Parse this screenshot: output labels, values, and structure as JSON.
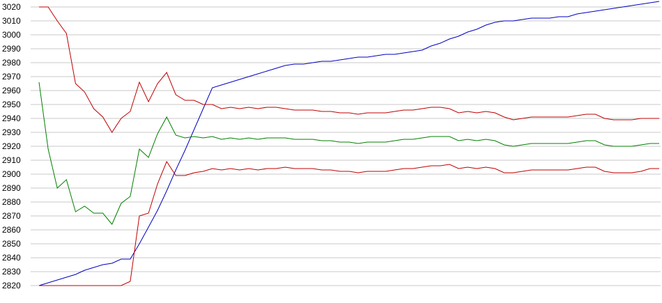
{
  "chart_data": {
    "type": "line",
    "title": "",
    "xlabel": "",
    "ylabel": "",
    "ylim": [
      2820,
      3020
    ],
    "yticks": [
      2820,
      2830,
      2840,
      2850,
      2860,
      2870,
      2880,
      2890,
      2900,
      2910,
      2920,
      2930,
      2940,
      2950,
      2960,
      2970,
      2980,
      2990,
      3000,
      3010,
      3020
    ],
    "grid": true,
    "legend": "none",
    "x": [
      0,
      1,
      2,
      3,
      4,
      5,
      6,
      7,
      8,
      9,
      10,
      11,
      12,
      13,
      14,
      15,
      16,
      17,
      18,
      19,
      20,
      21,
      22,
      23,
      24,
      25,
      26,
      27,
      28,
      29,
      30,
      31,
      32,
      33,
      34,
      35,
      36,
      37,
      38,
      39,
      40,
      41,
      42,
      43,
      44,
      45,
      46,
      47,
      48,
      49,
      50,
      51,
      52,
      53,
      54,
      55,
      56,
      57,
      58,
      59,
      60,
      61,
      62,
      63,
      64,
      65,
      66,
      67,
      68
    ],
    "series": [
      {
        "color": "#0000c0",
        "values": [
          2820,
          2822,
          2824,
          2826,
          2828,
          2831,
          2833,
          2835,
          2836,
          2839,
          2839,
          2850,
          2862,
          2874,
          2888,
          2903,
          2917,
          2932,
          2947,
          2962,
          2964,
          2966,
          2968,
          2970,
          2972,
          2974,
          2976,
          2978,
          2979,
          2979,
          2980,
          2981,
          2981,
          2982,
          2983,
          2984,
          2984,
          2985,
          2986,
          2986,
          2987,
          2988,
          2989,
          2992,
          2994,
          2997,
          2999,
          3002,
          3004,
          3007,
          3009,
          3010,
          3010,
          3011,
          3012,
          3012,
          3012,
          3013,
          3013,
          3015,
          3016,
          3017,
          3018,
          3019,
          3020,
          3021,
          3022,
          3023,
          3024
        ]
      },
      {
        "color": "#c00000",
        "values": [
          3020,
          3020,
          3010,
          3001,
          2965,
          2959,
          2947,
          2941,
          2930,
          2940,
          2945,
          2966,
          2952,
          2965,
          2973,
          2957,
          2953,
          2953,
          2950,
          2950,
          2947,
          2948,
          2947,
          2948,
          2947,
          2948,
          2948,
          2947,
          2946,
          2946,
          2946,
          2945,
          2945,
          2944,
          2944,
          2943,
          2944,
          2944,
          2944,
          2945,
          2946,
          2946,
          2947,
          2948,
          2948,
          2947,
          2944,
          2945,
          2944,
          2945,
          2944,
          2941,
          2939,
          2940,
          2941,
          2941,
          2941,
          2941,
          2941,
          2942,
          2943,
          2943,
          2940,
          2939,
          2939,
          2939,
          2940,
          2940,
          2940
        ]
      },
      {
        "color": "#008000",
        "values": [
          2966,
          2918,
          2890,
          2896,
          2873,
          2877,
          2872,
          2872,
          2864,
          2879,
          2884,
          2918,
          2912,
          2929,
          2941,
          2928,
          2926,
          2927,
          2926,
          2927,
          2925,
          2926,
          2925,
          2926,
          2925,
          2926,
          2926,
          2926,
          2925,
          2925,
          2925,
          2924,
          2924,
          2923,
          2923,
          2922,
          2923,
          2923,
          2923,
          2924,
          2925,
          2925,
          2926,
          2927,
          2927,
          2927,
          2924,
          2925,
          2924,
          2925,
          2924,
          2921,
          2920,
          2921,
          2922,
          2922,
          2922,
          2922,
          2922,
          2923,
          2924,
          2924,
          2921,
          2920,
          2920,
          2920,
          2921,
          2922,
          2922
        ]
      },
      {
        "color": "#c00000",
        "values": [
          2820,
          2820,
          2820,
          2820,
          2820,
          2820,
          2820,
          2820,
          2820,
          2820,
          2823,
          2870,
          2872,
          2893,
          2909,
          2899,
          2899,
          2901,
          2902,
          2904,
          2903,
          2904,
          2903,
          2904,
          2903,
          2904,
          2904,
          2905,
          2904,
          2904,
          2904,
          2903,
          2903,
          2902,
          2902,
          2901,
          2902,
          2902,
          2902,
          2903,
          2904,
          2904,
          2905,
          2906,
          2906,
          2907,
          2904,
          2905,
          2904,
          2905,
          2904,
          2901,
          2901,
          2902,
          2903,
          2903,
          2903,
          2903,
          2903,
          2904,
          2905,
          2905,
          2902,
          2901,
          2901,
          2901,
          2902,
          2904,
          2904
        ]
      }
    ]
  }
}
